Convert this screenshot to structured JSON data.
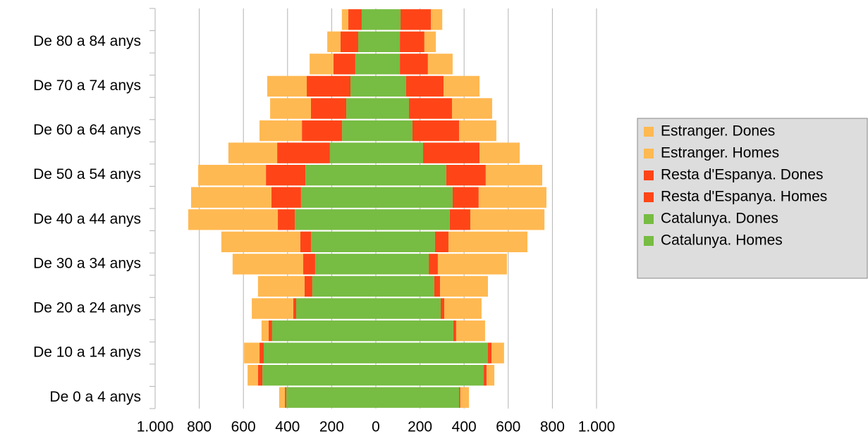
{
  "chart_data": {
    "type": "bar",
    "orientation": "horizontal",
    "stacked": true,
    "categories": [
      "De 0 a 4 anys",
      null,
      "De 10 a 14 anys",
      null,
      "De 20 a 24 anys",
      null,
      "De 30 a 34 anys",
      null,
      "De 40 a 44 anys",
      null,
      "De 50 a 54 anys",
      null,
      "De 60 a 64 anys",
      null,
      "De 70 a 74 anys",
      null,
      "De 80 a 84 anys",
      null
    ],
    "series": [
      {
        "name": "Catalunya. Homes",
        "color": "#77bc43",
        "values": [
          -406,
          -514,
          -508,
          -470,
          -361,
          -288,
          -275,
          -294,
          -367,
          -339,
          -319,
          -208,
          -153,
          -134,
          -115,
          -93,
          -80,
          -64
        ]
      },
      {
        "name": "Catalunya. Dones",
        "color": "#77bc43",
        "values": [
          377,
          489,
          508,
          351,
          294,
          265,
          240,
          268,
          335,
          348,
          319,
          214,
          166,
          150,
          137,
          109,
          109,
          112
        ]
      },
      {
        "name": "Resta d'Espanya. Homes",
        "color": "#ff4517",
        "values": [
          -6,
          -20,
          -19,
          -16,
          -13,
          -35,
          -54,
          -48,
          -77,
          -134,
          -179,
          -239,
          -182,
          -160,
          -198,
          -99,
          -80,
          -61
        ]
      },
      {
        "name": "Resta d'Espanya. Dones",
        "color": "#ff4517",
        "values": [
          6,
          13,
          16,
          13,
          16,
          26,
          41,
          61,
          93,
          118,
          179,
          256,
          211,
          195,
          170,
          127,
          111,
          138
        ]
      },
      {
        "name": "Estranger. Homes",
        "color": "#ffb952",
        "values": [
          -26,
          -47,
          -70,
          -32,
          -188,
          -211,
          -320,
          -358,
          -406,
          -364,
          -307,
          -221,
          -192,
          -185,
          -179,
          -108,
          -60,
          -29
        ]
      },
      {
        "name": "Estranger. Dones",
        "color": "#ffb952",
        "values": [
          39,
          35,
          57,
          131,
          169,
          217,
          313,
          358,
          336,
          307,
          256,
          182,
          169,
          182,
          163,
          112,
          52,
          51
        ]
      }
    ],
    "xlim": [
      -1000,
      1000
    ],
    "xticks": [
      {
        "value": -1000,
        "label": "1.000"
      },
      {
        "value": -800,
        "label": "800"
      },
      {
        "value": -600,
        "label": "600"
      },
      {
        "value": -400,
        "label": "400"
      },
      {
        "value": -200,
        "label": "200"
      },
      0,
      200,
      400,
      600,
      800,
      {
        "value": 1000,
        "label": "1.000"
      }
    ],
    "grid": true,
    "legend": "right"
  }
}
